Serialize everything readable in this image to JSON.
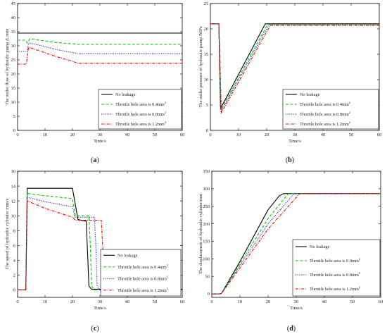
{
  "chart_data": [
    {
      "type": "line",
      "panel_label": "(a)",
      "xlabel": "Time/s",
      "ylabel": "The outlet flow of hydraulic pump /L/min",
      "xlim": [
        0,
        60
      ],
      "ylim": [
        0,
        45
      ],
      "xticks": [
        0,
        10,
        20,
        30,
        40,
        50,
        60
      ],
      "yticks": [
        0,
        5,
        10,
        15,
        20,
        25,
        30,
        35,
        40,
        45
      ],
      "legend_position": "lower-right",
      "series": [
        {
          "name": "No leakage",
          "color": "#000000",
          "dash": "solid",
          "x": [
            0,
            60
          ],
          "y": [
            34.5,
            34.5
          ]
        },
        {
          "name": "Throttle hole area is 0.4mm²",
          "color": "#00cc00",
          "dash": "dash",
          "x": [
            0,
            3,
            3.5,
            4.5,
            8,
            14,
            20,
            22,
            60
          ],
          "y": [
            32,
            32,
            31,
            32.5,
            32,
            31.2,
            30.7,
            30.5,
            30.5
          ]
        },
        {
          "name": "Throttle hole area is 0.8mm²",
          "color": "#0000ff",
          "dash": "dot",
          "x": [
            0,
            3,
            3.5,
            4,
            8,
            14,
            20,
            22,
            60
          ],
          "y": [
            28,
            28,
            28,
            31,
            30.2,
            28.7,
            27.6,
            27.2,
            27.2
          ]
        },
        {
          "name": "Throttle hole area is 1.2mm²",
          "color": "#ff0000",
          "dash": "dashdot",
          "x": [
            0,
            3,
            3.2,
            4,
            8,
            14,
            20,
            22,
            60
          ],
          "y": [
            23.5,
            23.5,
            23.5,
            29.5,
            28.2,
            26.2,
            24.5,
            23.8,
            23.8
          ]
        }
      ]
    },
    {
      "type": "line",
      "panel_label": "(b)",
      "xlabel": "Time/s",
      "ylabel": "The outlet pressure of hydraulic pump /MPa",
      "xlim": [
        0,
        60
      ],
      "ylim": [
        0,
        25
      ],
      "xticks": [
        0,
        10,
        20,
        30,
        40,
        50,
        60
      ],
      "yticks": [
        0,
        5,
        10,
        15,
        20,
        25
      ],
      "legend_position": "lower-right",
      "series": [
        {
          "name": "No leakage",
          "color": "#000000",
          "dash": "solid",
          "x": [
            0,
            3,
            3.6,
            19.5,
            20,
            60
          ],
          "y": [
            21,
            21,
            4.3,
            21,
            21,
            21
          ]
        },
        {
          "name": "Throttle hole area is 0.4mm²",
          "color": "#00cc00",
          "dash": "dash",
          "x": [
            0,
            3,
            3.7,
            20.3,
            21,
            60
          ],
          "y": [
            21,
            21,
            4,
            20.9,
            20.9,
            20.9
          ]
        },
        {
          "name": "Throttle hole area is 0.8mm²",
          "color": "#0000ff",
          "dash": "dot",
          "x": [
            0,
            3,
            3.8,
            20.8,
            21.5,
            60
          ],
          "y": [
            21,
            21,
            3.8,
            20.8,
            20.8,
            20.8
          ]
        },
        {
          "name": "Throttle hole area is 1.2mm²",
          "color": "#ff0000",
          "dash": "dashdot",
          "x": [
            0,
            3,
            3.9,
            21.3,
            22,
            60
          ],
          "y": [
            21,
            21,
            3.5,
            20.7,
            20.7,
            20.7
          ]
        }
      ]
    },
    {
      "type": "line",
      "panel_label": "(c)",
      "xlabel": "Time/s",
      "ylabel": "The speed of hydraulic cylinder /mm/s",
      "xlim": [
        0,
        60
      ],
      "ylim": [
        -1,
        16
      ],
      "xticks": [
        0,
        10,
        20,
        30,
        40,
        50,
        60
      ],
      "yticks": [
        0,
        2,
        4,
        6,
        8,
        10,
        12,
        14,
        16
      ],
      "legend_position": "lower-right",
      "series": [
        {
          "name": "No leakage",
          "color": "#000000",
          "dash": "solid",
          "x": [
            0,
            3,
            3.5,
            20,
            20.8,
            22,
            24,
            25,
            25.5,
            26,
            27,
            60
          ],
          "y": [
            0,
            0,
            13.7,
            13.7,
            12,
            9.5,
            9.3,
            9.3,
            5,
            0.5,
            0.1,
            0.1
          ]
        },
        {
          "name": "Throttle hole area is 0.4mm²",
          "color": "#00cc00",
          "dash": "dash",
          "x": [
            0,
            3,
            3.5,
            10,
            20,
            21,
            22,
            26,
            26.5,
            27,
            28,
            60
          ],
          "y": [
            0,
            0,
            13,
            12.7,
            12.3,
            10,
            10,
            10,
            6,
            0.5,
            0,
            0
          ]
        },
        {
          "name": "Throttle hole area is 0.8mm²",
          "color": "#0000ff",
          "dash": "dot",
          "x": [
            0,
            3,
            3.5,
            10,
            20,
            21,
            22,
            28,
            28.5,
            29,
            30,
            60
          ],
          "y": [
            0,
            0,
            12.5,
            11.9,
            11.2,
            9.8,
            9.8,
            9.8,
            6,
            0.5,
            0,
            0
          ]
        },
        {
          "name": "Throttle hole area is 1.2mm²",
          "color": "#ff0000",
          "dash": "dashdot",
          "x": [
            0,
            3,
            3.5,
            10,
            20,
            21,
            22,
            30.5,
            31,
            31.5,
            32,
            60
          ],
          "y": [
            0,
            0,
            12,
            11,
            9.8,
            9.4,
            9.4,
            9.4,
            6,
            0.5,
            0,
            0
          ]
        }
      ]
    },
    {
      "type": "line",
      "panel_label": "(d)",
      "xlabel": "Time/s",
      "ylabel": "The displacement of hydraulic cylinder/mm",
      "xlim": [
        0,
        60
      ],
      "ylim": [
        -10,
        350
      ],
      "xticks": [
        0,
        10,
        20,
        30,
        40,
        50,
        60
      ],
      "yticks": [
        0,
        50,
        100,
        150,
        200,
        250,
        300,
        350
      ],
      "legend_position": "lower-right",
      "series": [
        {
          "name": "No leakage",
          "color": "#000000",
          "dash": "solid",
          "x": [
            0,
            3,
            3.5,
            10,
            20,
            24,
            25.5,
            26,
            60
          ],
          "y": [
            0,
            0,
            2,
            92,
            240,
            280,
            286,
            286,
            286
          ]
        },
        {
          "name": "Throttle hole area is 0.4mm²",
          "color": "#00cc00",
          "dash": "dash",
          "x": [
            0,
            3,
            3.5,
            10,
            20,
            27,
            27.5,
            60
          ],
          "y": [
            0,
            0,
            2,
            86,
            215,
            284,
            286,
            286
          ]
        },
        {
          "name": "Throttle hole area is 0.8mm²",
          "color": "#0000ff",
          "dash": "dot",
          "x": [
            0,
            3,
            3.5,
            10,
            20,
            29,
            29.5,
            60
          ],
          "y": [
            0,
            0,
            2,
            80,
            200,
            284,
            286,
            286
          ]
        },
        {
          "name": "Throttle hole area is 1.2mm²",
          "color": "#ff0000",
          "dash": "dashdot",
          "x": [
            0,
            3,
            3.5,
            10,
            20,
            31,
            31.5,
            60
          ],
          "y": [
            0,
            0,
            2,
            74,
            185,
            284,
            286,
            286
          ]
        }
      ]
    }
  ]
}
